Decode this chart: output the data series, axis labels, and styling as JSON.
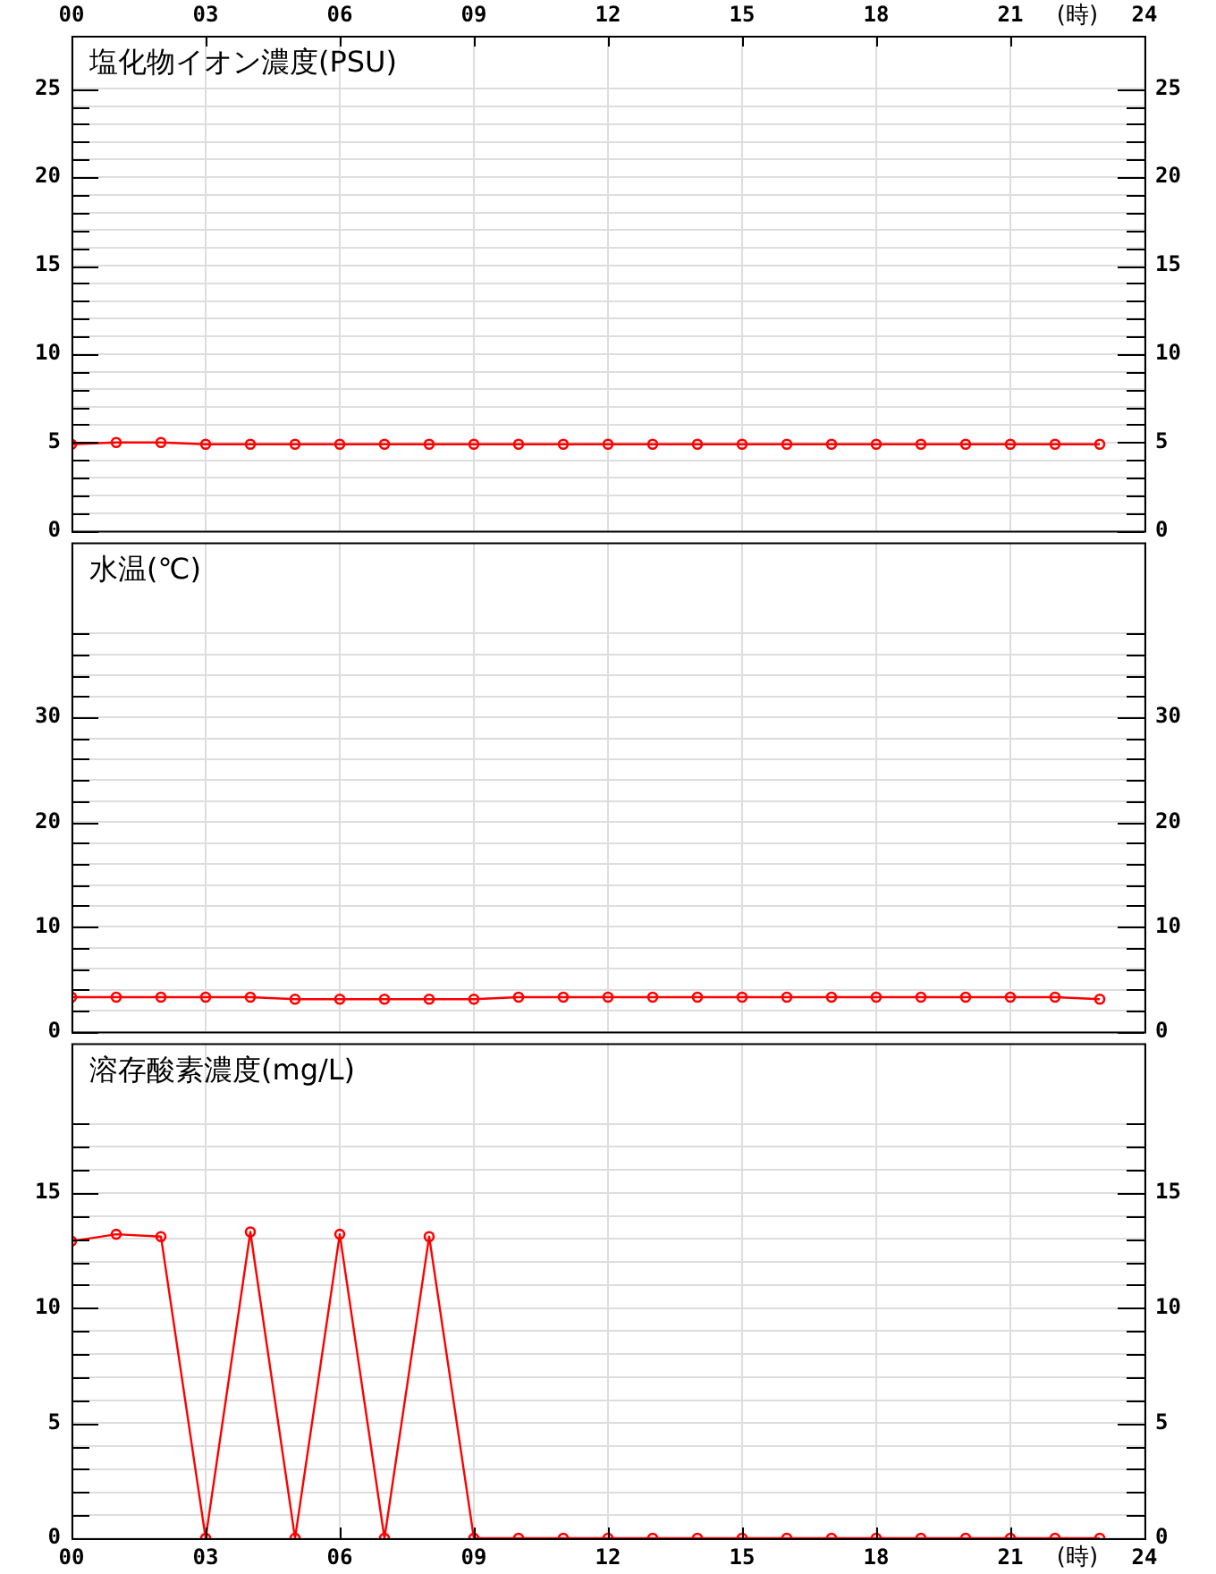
{
  "chart_data": [
    {
      "type": "line",
      "title": "塩化物イオン濃度(PSU)",
      "x": [
        0,
        1,
        2,
        3,
        4,
        5,
        6,
        7,
        8,
        9,
        10,
        11,
        12,
        13,
        14,
        15,
        16,
        17,
        18,
        19,
        20,
        21,
        22,
        23
      ],
      "series": [
        {
          "color": "#ff0000",
          "values": [
            4.9,
            5.0,
            5.0,
            4.9,
            4.9,
            4.9,
            4.9,
            4.9,
            4.9,
            4.9,
            4.9,
            4.9,
            4.9,
            4.9,
            4.9,
            4.9,
            4.9,
            4.9,
            4.9,
            4.9,
            4.9,
            4.9,
            4.9,
            4.9
          ]
        }
      ],
      "xlim": [
        0,
        24
      ],
      "xticks": [
        {
          "value": 0,
          "label": "00"
        },
        {
          "value": 3,
          "label": "03"
        },
        {
          "value": 6,
          "label": "06"
        },
        {
          "value": 9,
          "label": "09"
        },
        12,
        15,
        18,
        21,
        24
      ],
      "xlabel": "(時)",
      "ylim": [
        0,
        28
      ],
      "yticks": [
        0,
        {
          "value": 1,
          "label": null
        },
        {
          "value": 2,
          "label": null
        },
        {
          "value": 3,
          "label": null
        },
        {
          "value": 4,
          "label": null
        },
        5,
        {
          "value": 6,
          "label": null
        },
        {
          "value": 7,
          "label": null
        },
        {
          "value": 8,
          "label": null
        },
        {
          "value": 9,
          "label": null
        },
        10,
        {
          "value": 11,
          "label": null
        },
        {
          "value": 12,
          "label": null
        },
        {
          "value": 13,
          "label": null
        },
        {
          "value": 14,
          "label": null
        },
        15,
        {
          "value": 16,
          "label": null
        },
        {
          "value": 17,
          "label": null
        },
        {
          "value": 18,
          "label": null
        },
        {
          "value": 19,
          "label": null
        },
        20,
        {
          "value": 21,
          "label": null
        },
        {
          "value": 22,
          "label": null
        },
        {
          "value": 23,
          "label": null
        },
        {
          "value": 24,
          "label": null
        },
        25
      ],
      "y2lim": [
        0,
        28
      ],
      "y2ticks": [
        0,
        {
          "value": 1,
          "label": null
        },
        {
          "value": 2,
          "label": null
        },
        {
          "value": 3,
          "label": null
        },
        {
          "value": 4,
          "label": null
        },
        5,
        {
          "value": 6,
          "label": null
        },
        {
          "value": 7,
          "label": null
        },
        {
          "value": 8,
          "label": null
        },
        {
          "value": 9,
          "label": null
        },
        10,
        {
          "value": 11,
          "label": null
        },
        {
          "value": 12,
          "label": null
        },
        {
          "value": 13,
          "label": null
        },
        {
          "value": 14,
          "label": null
        },
        15,
        {
          "value": 16,
          "label": null
        },
        {
          "value": 17,
          "label": null
        },
        {
          "value": 18,
          "label": null
        },
        {
          "value": 19,
          "label": null
        },
        20,
        {
          "value": 21,
          "label": null
        },
        {
          "value": 22,
          "label": null
        },
        {
          "value": 23,
          "label": null
        },
        {
          "value": 24,
          "label": null
        },
        25
      ],
      "grid": true,
      "marker": "circle"
    },
    {
      "type": "line",
      "title": "水温(℃)",
      "x": [
        0,
        1,
        2,
        3,
        4,
        5,
        6,
        7,
        8,
        9,
        10,
        11,
        12,
        13,
        14,
        15,
        16,
        17,
        18,
        19,
        20,
        21,
        22,
        23
      ],
      "series": [
        {
          "color": "#ff0000",
          "values": [
            3.3,
            3.3,
            3.3,
            3.3,
            3.3,
            3.1,
            3.1,
            3.1,
            3.1,
            3.1,
            3.3,
            3.3,
            3.3,
            3.3,
            3.3,
            3.3,
            3.3,
            3.3,
            3.3,
            3.3,
            3.3,
            3.3,
            3.3,
            3.1
          ]
        }
      ],
      "xlim": [
        0,
        24
      ],
      "xticks": [
        0,
        3,
        6,
        9,
        12,
        15,
        18,
        21,
        24
      ],
      "tick_labels": "y",
      "ylim": [
        0,
        46.7
      ],
      "yticks": [
        0,
        {
          "value": 2,
          "label": null
        },
        {
          "value": 4,
          "label": null
        },
        {
          "value": 6,
          "label": null
        },
        {
          "value": 8,
          "label": null
        },
        10,
        {
          "value": 12,
          "label": null
        },
        {
          "value": 14,
          "label": null
        },
        {
          "value": 16,
          "label": null
        },
        {
          "value": 18,
          "label": null
        },
        20,
        {
          "value": 22,
          "label": null
        },
        {
          "value": 24,
          "label": null
        },
        {
          "value": 26,
          "label": null
        },
        {
          "value": 28,
          "label": null
        },
        30,
        {
          "value": 32,
          "label": null
        },
        {
          "value": 34,
          "label": null
        },
        {
          "value": 36,
          "label": null
        },
        {
          "value": 38,
          "label": null
        }
      ],
      "y2lim": [
        0,
        46.7
      ],
      "y2ticks": [
        0,
        {
          "value": 2,
          "label": null
        },
        {
          "value": 4,
          "label": null
        },
        {
          "value": 6,
          "label": null
        },
        {
          "value": 8,
          "label": null
        },
        10,
        {
          "value": 12,
          "label": null
        },
        {
          "value": 14,
          "label": null
        },
        {
          "value": 16,
          "label": null
        },
        {
          "value": 18,
          "label": null
        },
        20,
        {
          "value": 22,
          "label": null
        },
        {
          "value": 24,
          "label": null
        },
        {
          "value": 26,
          "label": null
        },
        {
          "value": 28,
          "label": null
        },
        30,
        {
          "value": 32,
          "label": null
        },
        {
          "value": 34,
          "label": null
        },
        {
          "value": 36,
          "label": null
        },
        {
          "value": 38,
          "label": null
        }
      ],
      "grid": true,
      "marker": "circle"
    },
    {
      "type": "line",
      "title": "溶存酸素濃度(mg/L)",
      "x": [
        0,
        1,
        2,
        3,
        4,
        5,
        6,
        7,
        8,
        9,
        10,
        11,
        12,
        13,
        14,
        15,
        16,
        17,
        18,
        19,
        20,
        21,
        22,
        23
      ],
      "series": [
        {
          "color": "#ff0000",
          "values": [
            12.9,
            13.2,
            13.1,
            0,
            13.3,
            0,
            13.2,
            0,
            13.1,
            0,
            0,
            0,
            0,
            0,
            0,
            0,
            0,
            0,
            0,
            0,
            0,
            0,
            0,
            0
          ]
        }
      ],
      "xlim": [
        0,
        24
      ],
      "xticks": [
        {
          "value": 0,
          "label": "00"
        },
        {
          "value": 3,
          "label": "03"
        },
        {
          "value": 6,
          "label": "06"
        },
        {
          "value": 9,
          "label": "09"
        },
        12,
        15,
        18,
        21,
        24
      ],
      "xlabel": "(時)",
      "ylim": [
        0,
        21.5
      ],
      "yticks": [
        0,
        {
          "value": 1,
          "label": null
        },
        {
          "value": 2,
          "label": null
        },
        {
          "value": 3,
          "label": null
        },
        {
          "value": 4,
          "label": null
        },
        5,
        {
          "value": 6,
          "label": null
        },
        {
          "value": 7,
          "label": null
        },
        {
          "value": 8,
          "label": null
        },
        {
          "value": 9,
          "label": null
        },
        10,
        {
          "value": 11,
          "label": null
        },
        {
          "value": 12,
          "label": null
        },
        {
          "value": 13,
          "label": null
        },
        {
          "value": 14,
          "label": null
        },
        15,
        {
          "value": 16,
          "label": null
        },
        {
          "value": 17,
          "label": null
        },
        {
          "value": 18,
          "label": null
        }
      ],
      "y2lim": [
        0,
        21.5
      ],
      "y2ticks": [
        0,
        {
          "value": 1,
          "label": null
        },
        {
          "value": 2,
          "label": null
        },
        {
          "value": 3,
          "label": null
        },
        {
          "value": 4,
          "label": null
        },
        5,
        {
          "value": 6,
          "label": null
        },
        {
          "value": 7,
          "label": null
        },
        {
          "value": 8,
          "label": null
        },
        {
          "value": 9,
          "label": null
        },
        10,
        {
          "value": 11,
          "label": null
        },
        {
          "value": 12,
          "label": null
        },
        {
          "value": 13,
          "label": null
        },
        {
          "value": 14,
          "label": null
        },
        15,
        {
          "value": 16,
          "label": null
        },
        {
          "value": 17,
          "label": null
        },
        {
          "value": 18,
          "label": null
        }
      ],
      "grid": true,
      "marker": "circle"
    }
  ]
}
